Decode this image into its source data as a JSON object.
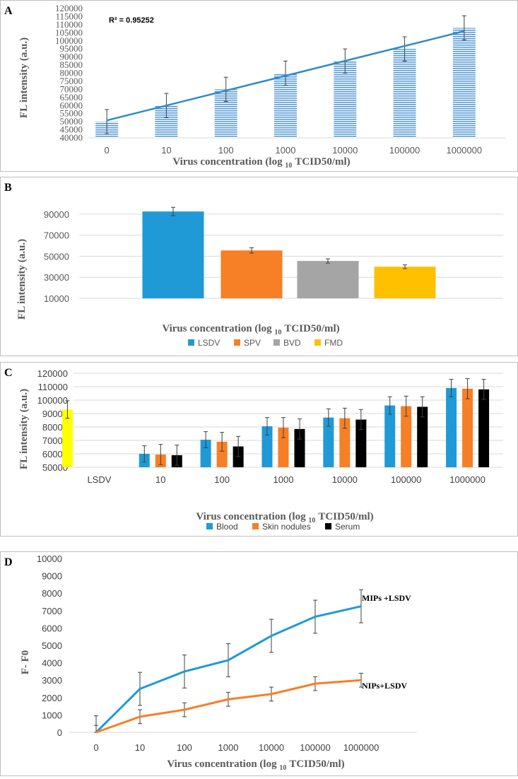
{
  "chart_data": [
    {
      "panel": "A",
      "type": "bar",
      "xlabel": "Virus concentration (log 10 TCID50/ml)",
      "ylabel": "FL intensity (a.u.)",
      "annotation": "R² = 0.95252",
      "ylim": [
        40000,
        120000
      ],
      "yticks": [
        40000,
        45000,
        50000,
        55000,
        60000,
        65000,
        70000,
        75000,
        80000,
        85000,
        90000,
        95000,
        100000,
        105000,
        110000,
        115000,
        120000
      ],
      "categories": [
        "0",
        "10",
        "100",
        "1000",
        "10000",
        "100000",
        "1000000"
      ],
      "values": [
        50000,
        60000,
        70000,
        80000,
        87500,
        95000,
        108000
      ],
      "errors": [
        7500,
        7500,
        7500,
        7500,
        7500,
        7500,
        7500
      ],
      "trendline": {
        "type": "linear",
        "start": 50800,
        "end": 106000
      },
      "colors": {
        "bar": "#5b9bd5",
        "trend": "#2e8bc9"
      }
    },
    {
      "panel": "B",
      "type": "bar",
      "xlabel": "Virus concentration (log 10 TCID50/ml)",
      "ylabel": "FL intensity (a.u.)",
      "ylim": [
        10000,
        100000
      ],
      "yticks": [
        10000,
        30000,
        50000,
        70000,
        90000
      ],
      "categories": [
        "LSDV",
        "SPV",
        "BVD",
        "FMD"
      ],
      "values": [
        92500,
        55500,
        45500,
        40000
      ],
      "errors": [
        4000,
        2500,
        2000,
        1800
      ],
      "legend": [
        "LSDV",
        "SPV",
        "BVD",
        "FMD"
      ],
      "colors": [
        "#1f9ad6",
        "#f77f25",
        "#a5a5a5",
        "#ffc000"
      ]
    },
    {
      "panel": "C",
      "type": "bar",
      "xlabel": "Virus concentration (log 10 TCID50/ml)",
      "ylabel": "FL intensity (a.u.)",
      "ylim": [
        50000,
        120000
      ],
      "yticks": [
        50000,
        60000,
        70000,
        80000,
        90000,
        100000,
        110000,
        120000
      ],
      "categories": [
        "LSDV",
        "10",
        "100",
        "1000",
        "10000",
        "100000",
        "1000000"
      ],
      "control": {
        "name": "LSDV",
        "value": 93000,
        "error": 6500,
        "color": "#ffff00"
      },
      "series": [
        {
          "name": "Blood",
          "values": [
            null,
            60000,
            70500,
            80500,
            87000,
            96000,
            109000
          ],
          "errors": [
            null,
            6000,
            6000,
            6500,
            6500,
            6500,
            6500
          ],
          "color": "#1f9ad6"
        },
        {
          "name": "Skin nodules",
          "values": [
            null,
            59500,
            69000,
            79500,
            86500,
            95500,
            108500
          ],
          "errors": [
            null,
            7500,
            7000,
            7500,
            7500,
            7500,
            7500
          ],
          "color": "#f77f25"
        },
        {
          "name": "Serum",
          "values": [
            null,
            59000,
            65500,
            78500,
            85500,
            95000,
            108000
          ],
          "errors": [
            null,
            7500,
            7500,
            7500,
            7500,
            7500,
            7500
          ],
          "color": "#000000"
        }
      ],
      "legend": [
        "Blood",
        "Skin nodules",
        "Serum"
      ]
    },
    {
      "panel": "D",
      "type": "line",
      "xlabel": "Virus concentration (log 10 TCID50/ml)",
      "ylabel": "F- F0",
      "ylim": [
        0,
        10000
      ],
      "yticks": [
        0,
        1000,
        2000,
        3000,
        4000,
        5000,
        6000,
        7000,
        8000,
        9000,
        10000
      ],
      "categories": [
        "0",
        "10",
        "100",
        "1000",
        "10000",
        "100000",
        "1000000"
      ],
      "series": [
        {
          "name": "MIPs +LSDV",
          "values": [
            0,
            2500,
            3500,
            4150,
            5550,
            6650,
            7250
          ],
          "errors": [
            950,
            950,
            950,
            950,
            950,
            950,
            950
          ],
          "color": "#1f9ad6"
        },
        {
          "name": "NIPs+LSDV",
          "values": [
            0,
            900,
            1300,
            1900,
            2200,
            2800,
            3000
          ],
          "errors": [
            400,
            400,
            400,
            400,
            400,
            400,
            400
          ],
          "color": "#f77f25"
        }
      ]
    }
  ],
  "panels": {
    "a": {
      "letter": "A",
      "annotation": "R² = 0.95252",
      "ylabel": "FL intensity (a.u.)",
      "xlabel_pre": "Virus concentration (log",
      "xlabel_sub": "10",
      "xlabel_post": "TCID50/ml)"
    },
    "b": {
      "letter": "B",
      "ylabel": "FL intensity (a.u.)",
      "xlabel_pre": "Virus concentration (log",
      "xlabel_sub": "10",
      "xlabel_post": "TCID50/ml)"
    },
    "c": {
      "letter": "C",
      "ylabel": "FL intensity (a.u.)",
      "xlabel_pre": "Virus concentration (log",
      "xlabel_sub": "10",
      "xlabel_post": "TCID50/ml)"
    },
    "d": {
      "letter": "D",
      "ylabel": "F- F0",
      "xlabel_pre": "Virus concentration (log",
      "xlabel_sub": "10",
      "xlabel_post": "TCID50/ml)",
      "label_mips": "MIPs +LSDV",
      "label_nips": "NIPs+LSDV"
    }
  }
}
